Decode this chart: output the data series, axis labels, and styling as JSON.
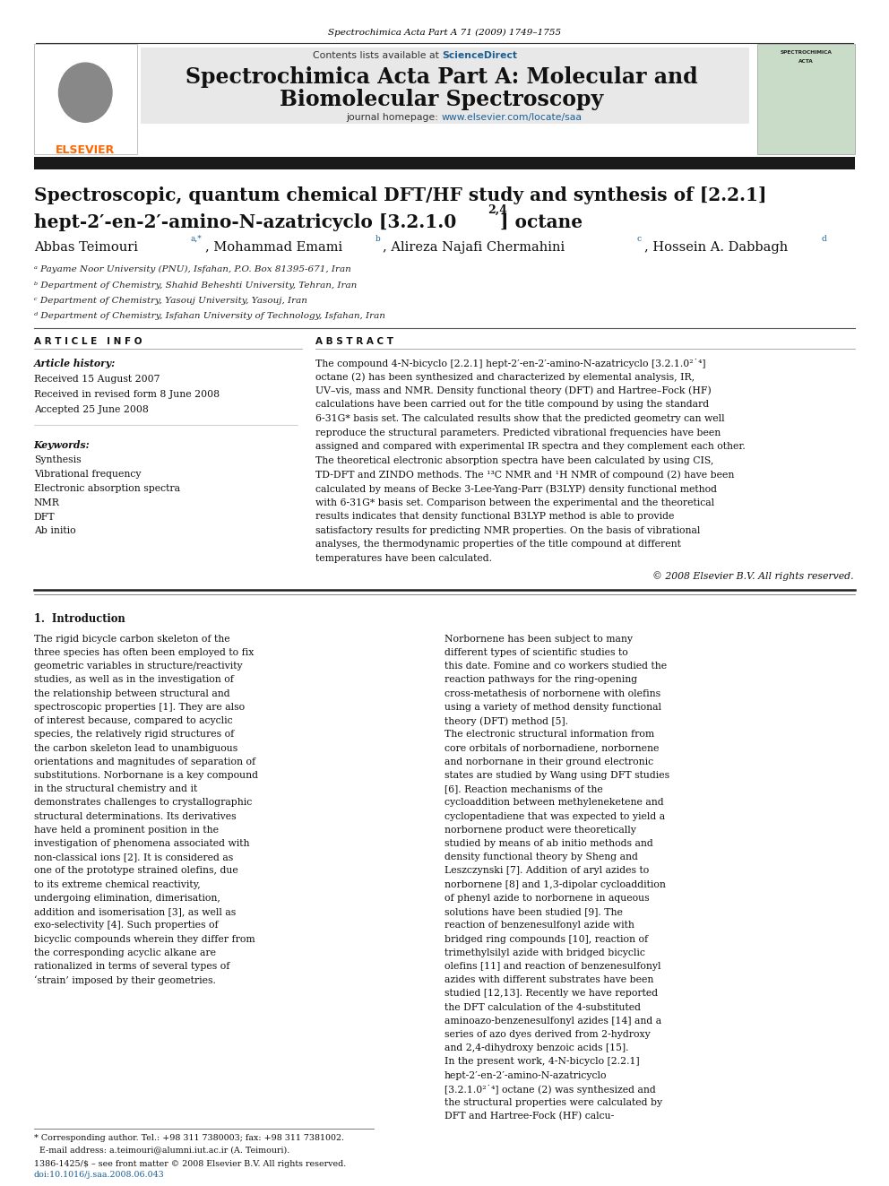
{
  "page_width": 9.92,
  "page_height": 13.23,
  "bg_color": "#ffffff",
  "journal_header_text": "Spectrochimica Acta Part A 71 (2009) 1749–1755",
  "journal_header_color": "#000000",
  "journal_header_fontsize": 7.5,
  "header_bg_color": "#e8e8e8",
  "contents_text": "Contents lists available at ",
  "sciencedirect_text": "ScienceDirect",
  "sciencedirect_color": "#1a6096",
  "journal_title_line1": "Spectrochimica Acta Part A: Molecular and",
  "journal_title_line2": "Biomolecular Spectroscopy",
  "journal_title_fontsize": 17,
  "journal_homepage_text": "journal homepage: ",
  "journal_homepage_url": "www.elsevier.com/locate/saa",
  "journal_homepage_color": "#1a6096",
  "article_title_line1": "Spectroscopic, quantum chemical DFT/HF study and synthesis of [2.2.1]",
  "article_title_line2": "hept-2′-en-2′-amino-N-azatricyclo [3.2.1.0",
  "article_title_superscript": "2,4",
  "article_title_line2_end": "] octane",
  "article_title_fontsize": 14.5,
  "authors_fontsize": 10.5,
  "aff_a": "ᵃ Payame Noor University (PNU), Isfahan, P.O. Box 81395-671, Iran",
  "aff_b": "ᵇ Department of Chemistry, Shahid Beheshti University, Tehran, Iran",
  "aff_c": "ᶜ Department of Chemistry, Yasouj University, Yasouj, Iran",
  "aff_d": "ᵈ Department of Chemistry, Isfahan University of Technology, Isfahan, Iran",
  "aff_fontsize": 7.5,
  "article_info_header": "A R T I C L E   I N F O",
  "abstract_header": "A B S T R A C T",
  "article_history_label": "Article history:",
  "received1": "Received 15 August 2007",
  "received2": "Received in revised form 8 June 2008",
  "accepted": "Accepted 25 June 2008",
  "keywords_label": "Keywords:",
  "keywords": [
    "Synthesis",
    "Vibrational frequency",
    "Electronic absorption spectra",
    "NMR",
    "DFT",
    "Ab initio"
  ],
  "abstract_text": "The compound 4-N-bicyclo [2.2.1] hept-2′-en-2′-amino-N-azatricyclo [3.2.1.0²˙⁴] octane (2) has been synthesized and characterized by elemental analysis, IR, UV–vis, mass and NMR. Density functional theory (DFT) and Hartree–Fock (HF) calculations have been carried out for the title compound by using the standard 6-31G* basis set. The calculated results show that the predicted geometry can well reproduce the structural parameters. Predicted vibrational frequencies have been assigned and compared with experimental IR spectra and they complement each other. The theoretical electronic absorption spectra have been calculated by using CIS, TD-DFT and ZINDO methods. The ¹³C NMR and ¹H NMR of compound (2) have been calculated by means of Becke 3-Lee-Yang-Parr (B3LYP) density functional method with 6-31G* basis set. Comparison between the experimental and the theoretical results indicates that density functional B3LYP method is able to provide satisfactory results for predicting NMR properties. On the basis of vibrational analyses, the thermodynamic properties of the title compound at different temperatures have been calculated.",
  "copyright_text": "© 2008 Elsevier B.V. All rights reserved.",
  "intro_header": "1.  Introduction",
  "intro_left_text": "    The rigid bicycle carbon skeleton of the three species has often been employed to fix geometric variables in structure/reactivity studies, as well as in the investigation of the relationship between structural and spectroscopic properties [1]. They are also of interest because, compared to acyclic species, the relatively rigid structures of the carbon skeleton lead to unambiguous orientations and magnitudes of separation of substitutions. Norbornane is a key compound in the structural chemistry and it demonstrates challenges to crystallographic structural determinations. Its derivatives have held a prominent position in the investigation of phenomena associated with non-classical ions [2]. It is considered as one of the prototype strained olefins, due to its extreme chemical reactivity, undergoing elimination, dimerisation, addition and isomerisation [3], as well as exo-selectivity [4]. Such properties of bicyclic compounds wherein they differ from the corresponding acyclic alkane are rationalized in terms of several types of ‘strain’ imposed by their geometries.",
  "intro_right_p1": "    Norbornene has been subject to many different types of scientific studies to this date. Fomine and co workers studied the reaction pathways for the ring-opening cross-metathesis of norbornene with olefins using a variety of method density functional theory (DFT) method [5].",
  "intro_right_p2": "    The electronic structural information from core orbitals of norbornadiene, norbornene and norbornane in their ground electronic states are studied by Wang using DFT studies [6]. Reaction mechanisms of the cycloaddition between methyleneketene and cyclopentadiene that was expected to yield a norbornene product were theoretically studied by means of ab initio methods and density functional theory by Sheng and Leszczynski [7]. Addition of aryl azides to norbornene [8] and 1,3-dipolar cycloaddition of phenyl azide to norbornene in aqueous solutions have been studied [9]. The reaction of benzenesulfonyl azide with bridged ring compounds [10], reaction of trimethylsilyl azide with bridged bicyclic olefins [11] and reaction of benzenesulfonyl azides with different substrates have been studied [12,13]. Recently we have reported the DFT calculation of the 4-substituted aminoazo-benzenesulfonyl azides [14] and a series of azo dyes derived from 2-hydroxy and 2,4-dihydroxy benzoic acids [15].",
  "intro_right_p3": "    In the present work, 4-N-bicyclo [2.2.1] hept-2′-en-2′-amino-N-azatricyclo [3.2.1.0²˙⁴] octane (2) was synthesized and the structural properties were calculated by DFT and Hartree-Fock (HF) calcu-",
  "footnote_text": "* Corresponding author. Tel.: +98 311 7380003; fax: +98 311 7381002.",
  "footnote_email": "  E-mail address: a.teimouri@alumni.iut.ac.ir (A. Teimouri).",
  "issn_text": "1386-1425/$ – see front matter © 2008 Elsevier B.V. All rights reserved.",
  "doi_text": "doi:10.1016/j.saa.2008.06.043",
  "small_fontsize": 6.8,
  "body_fontsize": 7.8,
  "dark_bar_color": "#1a1a1a",
  "elsevier_color": "#ff6600",
  "link_color": "#1a6096"
}
